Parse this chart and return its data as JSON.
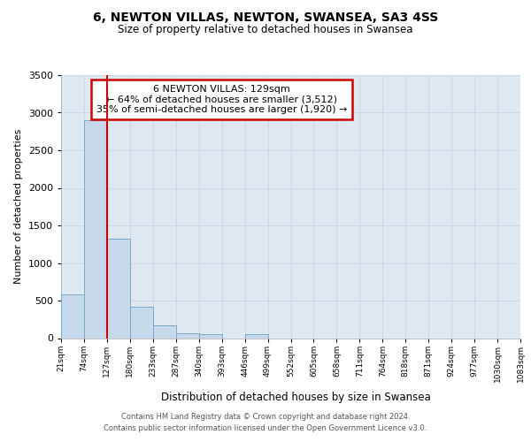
{
  "title": "6, NEWTON VILLAS, NEWTON, SWANSEA, SA3 4SS",
  "subtitle": "Size of property relative to detached houses in Swansea",
  "xlabel": "Distribution of detached houses by size in Swansea",
  "ylabel": "Number of detached properties",
  "bar_color": "#c6d9ea",
  "bar_edge_color": "#7aaac8",
  "vline_color": "#cc0000",
  "annotation_text": "6 NEWTON VILLAS: 129sqm\n← 64% of detached houses are smaller (3,512)\n35% of semi-detached houses are larger (1,920) →",
  "annotation_box_edgecolor": "#cc0000",
  "annotation_box_facecolor": "#ffffff",
  "bin_labels": [
    "21sqm",
    "74sqm",
    "127sqm",
    "180sqm",
    "233sqm",
    "287sqm",
    "340sqm",
    "393sqm",
    "446sqm",
    "499sqm",
    "552sqm",
    "605sqm",
    "658sqm",
    "711sqm",
    "764sqm",
    "818sqm",
    "871sqm",
    "924sqm",
    "977sqm",
    "1030sqm",
    "1083sqm"
  ],
  "values": [
    580,
    2900,
    1320,
    420,
    175,
    68,
    50,
    0,
    50,
    0,
    0,
    0,
    0,
    0,
    0,
    0,
    0,
    0,
    0,
    0
  ],
  "ylim": [
    0,
    3500
  ],
  "yticks": [
    0,
    500,
    1000,
    1500,
    2000,
    2500,
    3000,
    3500
  ],
  "grid_color": "#ccd8e5",
  "plot_bg_color": "#dde8f0",
  "property_bin_index": 2,
  "footer_line1": "Contains HM Land Registry data © Crown copyright and database right 2024.",
  "footer_line2": "Contains public sector information licensed under the Open Government Licence v3.0."
}
